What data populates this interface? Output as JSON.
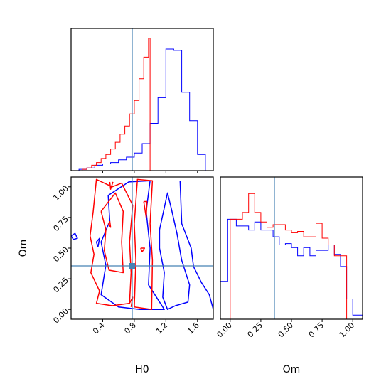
{
  "chart_data": {
    "type": "corner",
    "parameters": [
      "H0",
      "Om"
    ],
    "truth": {
      "H0": 0.8,
      "Om": 0.36
    },
    "truth_color": "#4682b4",
    "series_colors": {
      "red": "#ff0000",
      "blue": "#0000ff"
    },
    "panels": {
      "h0_hist": {
        "type": "step-histogram",
        "xlim": [
          0.0,
          1.8
        ],
        "ylim": [
          0,
          1
        ],
        "red": {
          "edges": [
            0.14,
            0.2,
            0.26,
            0.32,
            0.38,
            0.44,
            0.5,
            0.56,
            0.62,
            0.68,
            0.74,
            0.8,
            0.86,
            0.92,
            0.98,
            1.0
          ],
          "counts": [
            0.01,
            0.02,
            0.04,
            0.06,
            0.09,
            0.12,
            0.16,
            0.21,
            0.27,
            0.33,
            0.42,
            0.52,
            0.68,
            0.84,
            0.98
          ]
        },
        "blue": {
          "edges": [
            0.0,
            0.1,
            0.2,
            0.3,
            0.4,
            0.5,
            0.6,
            0.7,
            0.8,
            0.9,
            1.0,
            1.1,
            1.2,
            1.3,
            1.4,
            1.5,
            1.6,
            1.7,
            1.8
          ],
          "counts": [
            0.0,
            0.01,
            0.02,
            0.04,
            0.05,
            0.06,
            0.08,
            0.1,
            0.13,
            0.2,
            0.35,
            0.54,
            0.9,
            0.89,
            0.58,
            0.37,
            0.12,
            0.0
          ]
        }
      },
      "om_hist": {
        "type": "step-histogram",
        "xlim": [
          -0.08,
          1.08
        ],
        "xticks": [
          "0.00",
          "0.25",
          "0.50",
          "0.75",
          "1.00"
        ],
        "xlabel": "Om",
        "ylim": [
          0,
          1
        ],
        "red": {
          "edges": [
            0.0,
            0.05,
            0.1,
            0.15,
            0.2,
            0.25,
            0.3,
            0.35,
            0.4,
            0.45,
            0.5,
            0.55,
            0.6,
            0.65,
            0.7,
            0.75,
            0.8,
            0.85,
            0.9,
            0.95,
            1.0
          ],
          "counts": [
            0.74,
            0.74,
            0.79,
            0.93,
            0.79,
            0.72,
            0.68,
            0.7,
            0.7,
            0.66,
            0.64,
            0.65,
            0.61,
            0.61,
            0.71,
            0.6,
            0.55,
            0.47,
            0.47,
            0.0
          ]
        },
        "blue": {
          "edges": [
            -0.08,
            -0.02,
            0.05,
            0.1,
            0.15,
            0.2,
            0.25,
            0.3,
            0.35,
            0.4,
            0.45,
            0.5,
            0.55,
            0.6,
            0.65,
            0.7,
            0.75,
            0.8,
            0.85,
            0.9,
            0.95,
            1.0,
            1.08
          ],
          "counts": [
            0.28,
            0.74,
            0.69,
            0.69,
            0.66,
            0.72,
            0.66,
            0.66,
            0.61,
            0.55,
            0.56,
            0.53,
            0.47,
            0.53,
            0.47,
            0.51,
            0.51,
            0.55,
            0.48,
            0.39,
            0.15,
            0.03
          ]
        }
      },
      "joint": {
        "type": "contour",
        "xlim": [
          0.0,
          1.8
        ],
        "ylim": [
          -0.08,
          1.08
        ],
        "xticks": [
          "0.4",
          "0.8",
          "1.2",
          "1.6"
        ],
        "yticks": [
          "0.00",
          "0.25",
          "0.50",
          "0.75",
          "1.00"
        ],
        "xlabel": "H0",
        "ylabel": "Om",
        "red_contours": [
          [
            [
              0.52,
              1.0
            ],
            [
              0.32,
              1.06
            ],
            [
              0.28,
              0.8
            ],
            [
              0.24,
              0.6
            ],
            [
              0.29,
              0.45
            ],
            [
              0.25,
              0.3
            ],
            [
              0.36,
              0.15
            ],
            [
              0.32,
              0.05
            ],
            [
              0.52,
              0.03
            ],
            [
              0.74,
              0.05
            ],
            [
              0.76,
              0.3
            ],
            [
              0.74,
              0.55
            ],
            [
              0.78,
              0.85
            ],
            [
              0.64,
              1.03
            ],
            [
              0.52,
              1.0
            ]
          ],
          [
            [
              0.8,
              0.02
            ],
            [
              1.02,
              0.0
            ],
            [
              1.03,
              0.4
            ],
            [
              1.0,
              0.7
            ],
            [
              1.03,
              1.05
            ],
            [
              0.84,
              1.06
            ],
            [
              0.8,
              0.7
            ],
            [
              0.82,
              0.4
            ],
            [
              0.8,
              0.02
            ]
          ],
          [
            [
              0.38,
              0.8
            ],
            [
              0.44,
              0.65
            ],
            [
              0.42,
              0.48
            ],
            [
              0.48,
              0.32
            ],
            [
              0.66,
              0.3
            ],
            [
              0.64,
              0.55
            ],
            [
              0.66,
              0.8
            ],
            [
              0.56,
              0.95
            ],
            [
              0.38,
              0.8
            ]
          ],
          [
            [
              0.92,
              0.88
            ],
            [
              0.96,
              0.88
            ],
            [
              0.95,
              0.75
            ],
            [
              0.92,
              0.88
            ]
          ],
          [
            [
              0.88,
              0.5
            ],
            [
              0.93,
              0.5
            ],
            [
              0.9,
              0.47
            ],
            [
              0.88,
              0.5
            ]
          ],
          [
            [
              0.49,
              1.04
            ],
            [
              0.5,
              0.98
            ],
            [
              0.53,
              1.04
            ]
          ],
          [
            [
              0.47,
              0.7
            ],
            [
              0.5,
              0.67
            ],
            [
              0.49,
              0.72
            ]
          ],
          [
            [
              0.74,
              0.05
            ],
            [
              0.78,
              0.1
            ],
            [
              0.76,
              0.02
            ]
          ]
        ],
        "blue_contours": [
          [
            [
              1.0,
              1.05
            ],
            [
              0.73,
              1.04
            ],
            [
              0.47,
              0.93
            ],
            [
              0.49,
              0.72
            ],
            [
              0.38,
              0.55
            ],
            [
              0.44,
              0.36
            ],
            [
              0.38,
              0.12
            ],
            [
              0.6,
              0.02
            ],
            [
              0.87,
              0.0
            ],
            [
              1.05,
              0.0
            ],
            [
              1.18,
              0.0
            ],
            [
              0.98,
              0.2
            ],
            [
              1.0,
              0.5
            ],
            [
              0.95,
              0.8
            ],
            [
              1.0,
              1.05
            ]
          ],
          [
            [
              1.12,
              0.65
            ],
            [
              1.22,
              0.95
            ],
            [
              1.27,
              0.82
            ],
            [
              1.34,
              0.62
            ],
            [
              1.4,
              0.4
            ],
            [
              1.5,
              0.2
            ],
            [
              1.48,
              0.06
            ],
            [
              1.32,
              0.03
            ],
            [
              1.22,
              0.0
            ],
            [
              1.16,
              0.1
            ],
            [
              1.18,
              0.3
            ],
            [
              1.12,
              0.5
            ],
            [
              1.12,
              0.65
            ]
          ],
          [
            [
              1.38,
              1.05
            ],
            [
              1.4,
              0.7
            ],
            [
              1.52,
              0.5
            ],
            [
              1.55,
              0.35
            ],
            [
              1.65,
              0.22
            ],
            [
              1.75,
              0.12
            ],
            [
              1.8,
              0.0
            ]
          ],
          [
            [
              0.0,
              0.6
            ],
            [
              0.05,
              0.62
            ],
            [
              0.08,
              0.58
            ],
            [
              0.03,
              0.57
            ],
            [
              0.0,
              0.6
            ]
          ],
          [
            [
              0.32,
              0.55
            ],
            [
              0.36,
              0.58
            ],
            [
              0.34,
              0.51
            ],
            [
              0.32,
              0.55
            ]
          ]
        ]
      }
    }
  }
}
